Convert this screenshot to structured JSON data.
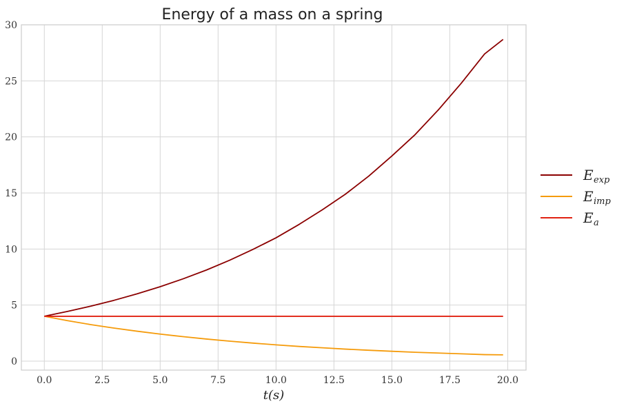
{
  "chart_data": {
    "type": "line",
    "title": "Energy of a mass on a spring",
    "xlabel": "t(s)",
    "ylabel": "",
    "xlim": [
      -0.99,
      20.79
    ],
    "ylim": [
      -0.8,
      30
    ],
    "xticks": [
      0.0,
      2.5,
      5.0,
      7.5,
      10.0,
      12.5,
      15.0,
      17.5,
      20.0
    ],
    "xtick_labels": [
      "0.0",
      "2.5",
      "5.0",
      "7.5",
      "10.0",
      "12.5",
      "15.0",
      "17.5",
      "20.0"
    ],
    "yticks": [
      0,
      5,
      10,
      15,
      20,
      25,
      30
    ],
    "ytick_labels": [
      "0",
      "5",
      "10",
      "15",
      "20",
      "25",
      "30"
    ],
    "grid": true,
    "legend_position": "outside-right",
    "series": [
      {
        "name": "E_exp",
        "label_main": "E",
        "label_sub": "exp",
        "color": "#8b0000",
        "x": [
          0,
          1,
          2,
          3,
          4,
          5,
          6,
          7,
          8,
          9,
          10,
          11,
          12,
          13,
          14,
          15,
          16,
          17,
          18,
          19,
          19.8
        ],
        "y": [
          4.0,
          4.43,
          4.9,
          5.42,
          6.0,
          6.64,
          7.35,
          8.13,
          9.0,
          9.96,
          11.0,
          12.2,
          13.5,
          14.9,
          16.5,
          18.3,
          20.2,
          22.4,
          24.8,
          27.4,
          28.7
        ]
      },
      {
        "name": "E_imp",
        "label_main": "E",
        "label_sub": "imp",
        "color": "#f59b0b",
        "x": [
          0,
          1,
          2,
          3,
          4,
          5,
          6,
          7,
          8,
          9,
          10,
          11,
          12,
          13,
          14,
          15,
          16,
          17,
          18,
          19,
          19.8
        ],
        "y": [
          4.0,
          3.61,
          3.26,
          2.95,
          2.67,
          2.41,
          2.18,
          1.97,
          1.78,
          1.61,
          1.45,
          1.31,
          1.19,
          1.07,
          0.97,
          0.88,
          0.79,
          0.72,
          0.65,
          0.58,
          0.56
        ]
      },
      {
        "name": "E_a",
        "label_main": "E",
        "label_sub": "a",
        "color": "#e02010",
        "x": [
          0,
          19.8
        ],
        "y": [
          4.0,
          4.0
        ]
      }
    ]
  }
}
